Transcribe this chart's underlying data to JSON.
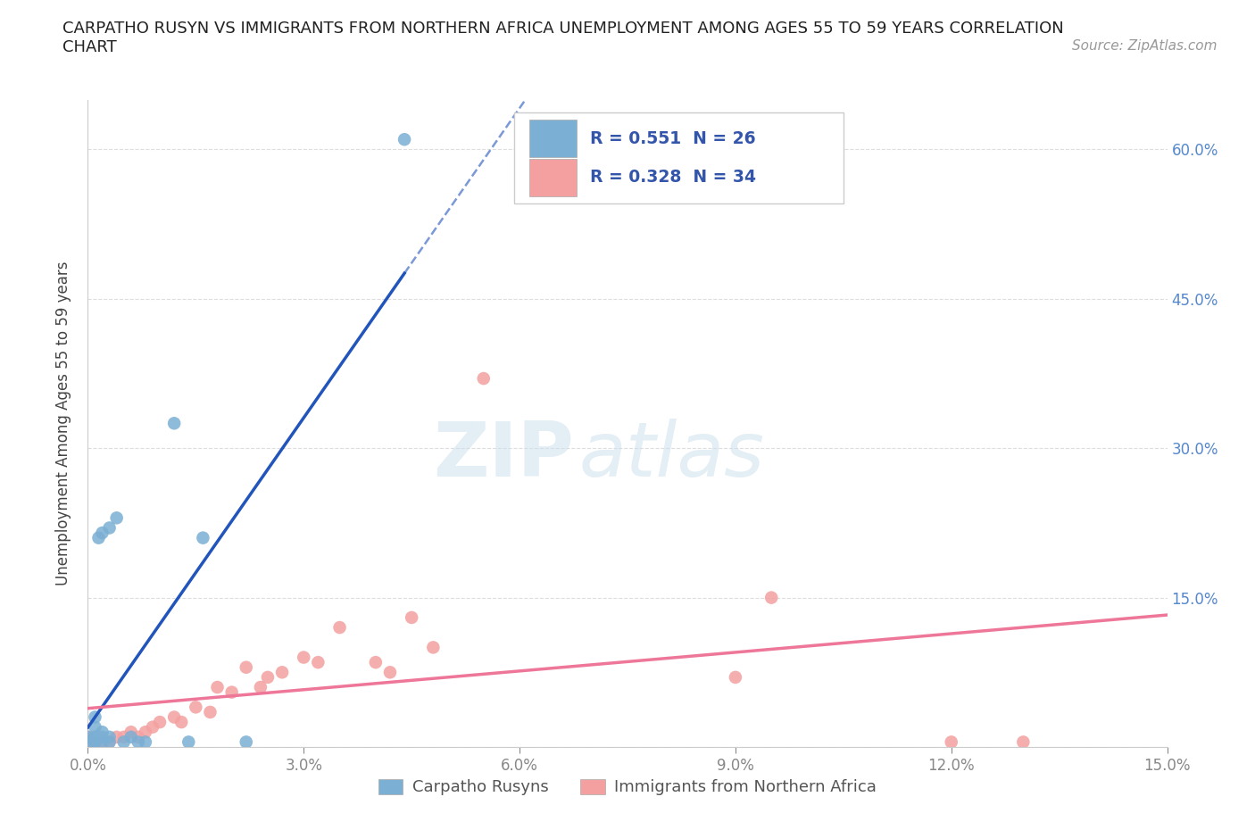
{
  "title_line1": "CARPATHO RUSYN VS IMMIGRANTS FROM NORTHERN AFRICA UNEMPLOYMENT AMONG AGES 55 TO 59 YEARS CORRELATION",
  "title_line2": "CHART",
  "source_text": "Source: ZipAtlas.com",
  "ylabel": "Unemployment Among Ages 55 to 59 years",
  "xlim": [
    0.0,
    0.15
  ],
  "ylim": [
    0.0,
    0.65
  ],
  "xticks": [
    0.0,
    0.03,
    0.06,
    0.09,
    0.12,
    0.15
  ],
  "xticklabels": [
    "0.0%",
    "3.0%",
    "6.0%",
    "9.0%",
    "12.0%",
    "15.0%"
  ],
  "yticks": [
    0.0,
    0.15,
    0.3,
    0.45,
    0.6
  ],
  "yticklabels": [
    "",
    "15.0%",
    "30.0%",
    "45.0%",
    "60.0%"
  ],
  "blue_scatter_x": [
    0.0,
    0.0,
    0.001,
    0.001,
    0.001,
    0.001,
    0.001,
    0.001,
    0.0015,
    0.002,
    0.002,
    0.002,
    0.002,
    0.003,
    0.003,
    0.003,
    0.004,
    0.005,
    0.006,
    0.007,
    0.008,
    0.012,
    0.014,
    0.016,
    0.022,
    0.044
  ],
  "blue_scatter_y": [
    0.005,
    0.01,
    0.005,
    0.005,
    0.01,
    0.01,
    0.02,
    0.03,
    0.21,
    0.005,
    0.01,
    0.015,
    0.215,
    0.005,
    0.01,
    0.22,
    0.23,
    0.005,
    0.01,
    0.005,
    0.005,
    0.325,
    0.005,
    0.21,
    0.005,
    0.61
  ],
  "pink_scatter_x": [
    0.0,
    0.0,
    0.001,
    0.002,
    0.003,
    0.004,
    0.005,
    0.006,
    0.007,
    0.008,
    0.009,
    0.01,
    0.012,
    0.013,
    0.015,
    0.017,
    0.018,
    0.02,
    0.022,
    0.024,
    0.025,
    0.027,
    0.03,
    0.032,
    0.035,
    0.04,
    0.042,
    0.045,
    0.048,
    0.055,
    0.09,
    0.095,
    0.12,
    0.13
  ],
  "pink_scatter_y": [
    0.005,
    0.01,
    0.005,
    0.005,
    0.005,
    0.01,
    0.01,
    0.015,
    0.01,
    0.015,
    0.02,
    0.025,
    0.03,
    0.025,
    0.04,
    0.035,
    0.06,
    0.055,
    0.08,
    0.06,
    0.07,
    0.075,
    0.09,
    0.085,
    0.12,
    0.085,
    0.075,
    0.13,
    0.1,
    0.37,
    0.07,
    0.15,
    0.005,
    0.005
  ],
  "blue_R": 0.551,
  "blue_N": 26,
  "pink_R": 0.328,
  "pink_N": 34,
  "blue_color": "#7BAFD4",
  "pink_color": "#F4A0A0",
  "blue_line_color": "#2255BB",
  "pink_line_color": "#EE7799",
  "legend_label_blue": "Carpatho Rusyns",
  "legend_label_pink": "Immigrants from Northern Africa",
  "watermark_zip": "ZIP",
  "watermark_atlas": "atlas",
  "background_color": "#ffffff",
  "grid_color": "#dddddd",
  "ytick_color": "#5588CC",
  "xtick_color": "#888888"
}
